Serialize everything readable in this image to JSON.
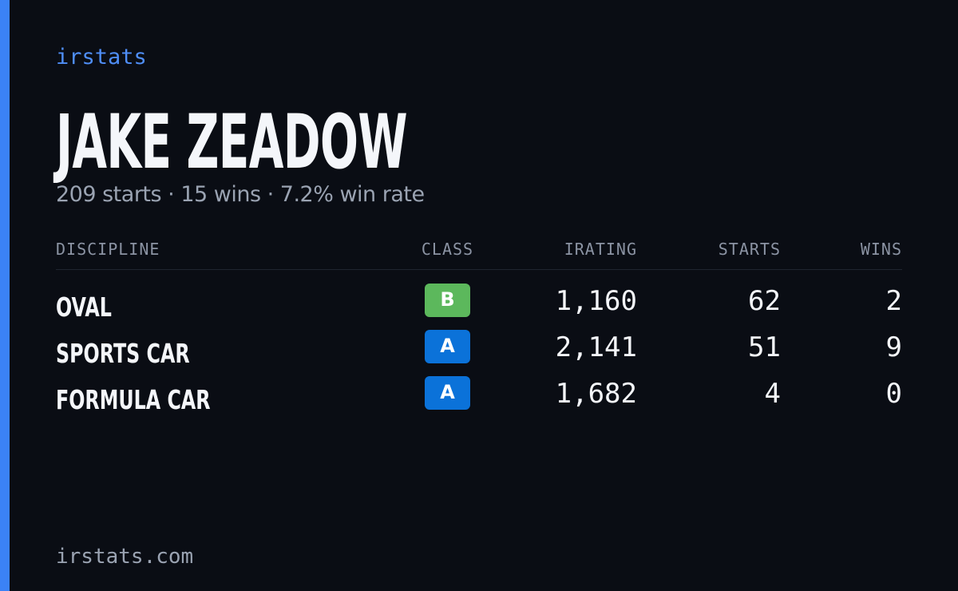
{
  "brand": "irstats",
  "name": "JAKE ZEADOW",
  "summary": "209 starts · 15 wins · 7.2% win rate",
  "table": {
    "headers": [
      "DISCIPLINE",
      "CLASS",
      "IRATING",
      "STARTS",
      "WINS"
    ],
    "rows": [
      [
        "OVAL",
        "B",
        "1,160",
        "62",
        "2"
      ],
      [
        "SPORTS CAR",
        "A",
        "2,141",
        "51",
        "9"
      ],
      [
        "FORMULA CAR",
        "A",
        "1,682",
        "4",
        "0"
      ]
    ]
  },
  "class_colors": {
    "A": "#0b72d9",
    "B": "#5cb85c"
  },
  "footer": "irstats.com"
}
